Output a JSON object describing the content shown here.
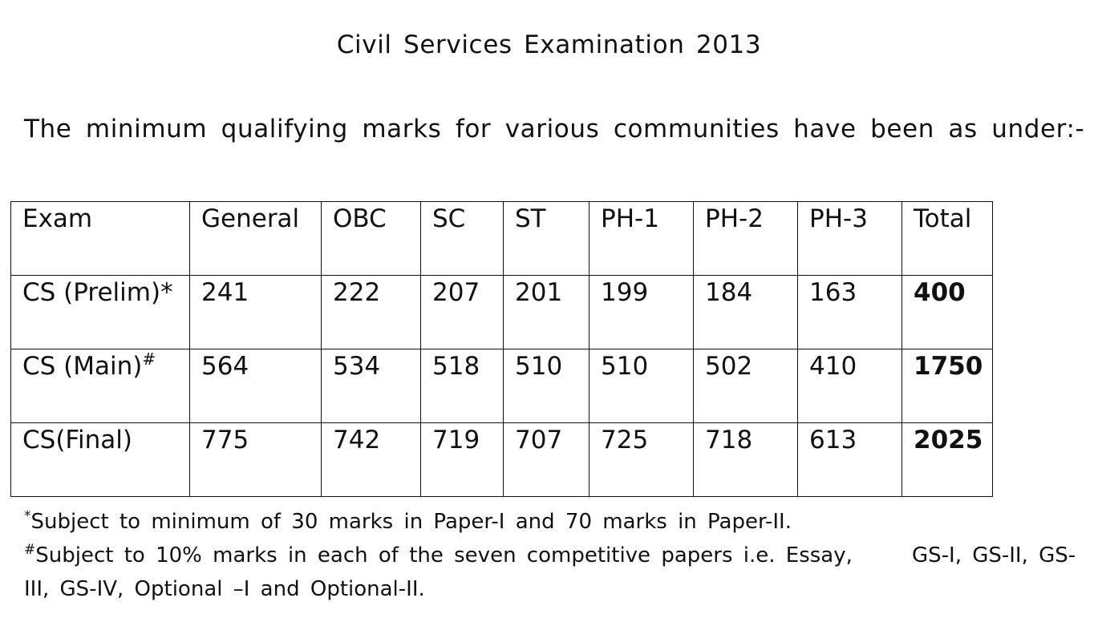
{
  "title": "Civil Services Examination 2013",
  "intro": "The minimum qualifying marks for various communities have been as under:-",
  "table": {
    "headers": [
      "Exam",
      "General",
      "OBC",
      "SC",
      "ST",
      "PH-1",
      "PH-2",
      "PH-3",
      "Total"
    ],
    "rows": [
      {
        "exam": "CS (Prelim)",
        "mark": "*",
        "values": [
          "241",
          "222",
          "207",
          "201",
          "199",
          "184",
          "163"
        ],
        "total": "400"
      },
      {
        "exam": "CS (Main)",
        "mark": "#",
        "values": [
          "564",
          "534",
          "518",
          "510",
          "510",
          "502",
          "410"
        ],
        "total": "1750"
      },
      {
        "exam": "CS(Final)",
        "mark": "",
        "values": [
          "775",
          "742",
          "719",
          "707",
          "725",
          "718",
          "613"
        ],
        "total": "2025"
      }
    ]
  },
  "notes": {
    "note1_mark": "*",
    "note1": "Subject to minimum of 30 marks in Paper-I and 70 marks in Paper-II.",
    "note2_mark": "#",
    "note2_line1": "Subject to 10% marks in each of the seven competitive papers i.e. Essay,",
    "note2_line1_tail": "GS-I, GS-II, GS-",
    "note2_line2": "III, GS-IV, Optional –I and Optional-II."
  }
}
